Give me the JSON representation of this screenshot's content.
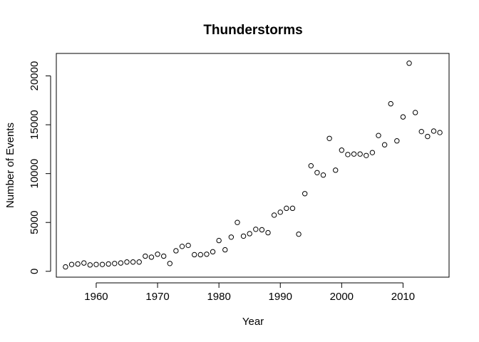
{
  "chart_data": {
    "type": "scatter",
    "title": "Thunderstorms",
    "xlabel": "Year",
    "ylabel": "Number of Events",
    "xlim": [
      1953.5,
      2017.5
    ],
    "ylim": [
      -600,
      22300
    ],
    "xticks": [
      1960,
      1970,
      1980,
      1990,
      2000,
      2010
    ],
    "yticks": [
      0,
      5000,
      10000,
      15000,
      20000
    ],
    "grid": false,
    "legend": "none",
    "marker": "open-circle",
    "color": "#000000",
    "series": [
      {
        "x": [
          1955,
          1956,
          1957,
          1958,
          1959,
          1960,
          1961,
          1962,
          1963,
          1964,
          1965,
          1966,
          1967,
          1968,
          1969,
          1970,
          1971,
          1972,
          1973,
          1974,
          1975,
          1976,
          1977,
          1978,
          1979,
          1980,
          1981,
          1982,
          1983,
          1984,
          1985,
          1986,
          1987,
          1988,
          1989,
          1990,
          1991,
          1992,
          1993,
          1994,
          1995,
          1996,
          1997,
          1998,
          1999,
          2000,
          2001,
          2002,
          2003,
          2004,
          2005,
          2006,
          2007,
          2008,
          2009,
          2010,
          2011,
          2012,
          2013,
          2014,
          2015,
          2016
        ],
        "y": [
          450,
          700,
          750,
          850,
          650,
          700,
          700,
          750,
          800,
          850,
          950,
          950,
          950,
          1550,
          1450,
          1750,
          1550,
          800,
          2100,
          2550,
          2650,
          1700,
          1700,
          1750,
          2000,
          3150,
          2200,
          3500,
          5000,
          3600,
          3850,
          4300,
          4250,
          3950,
          5750,
          6050,
          6450,
          6450,
          3800,
          7950,
          10800,
          10100,
          9850,
          13600,
          10350,
          12400,
          11950,
          12000,
          12000,
          11850,
          12150,
          13900,
          12950,
          17150,
          13350,
          15800,
          21300,
          16250,
          14300,
          13800,
          14350,
          14200
        ]
      }
    ]
  }
}
